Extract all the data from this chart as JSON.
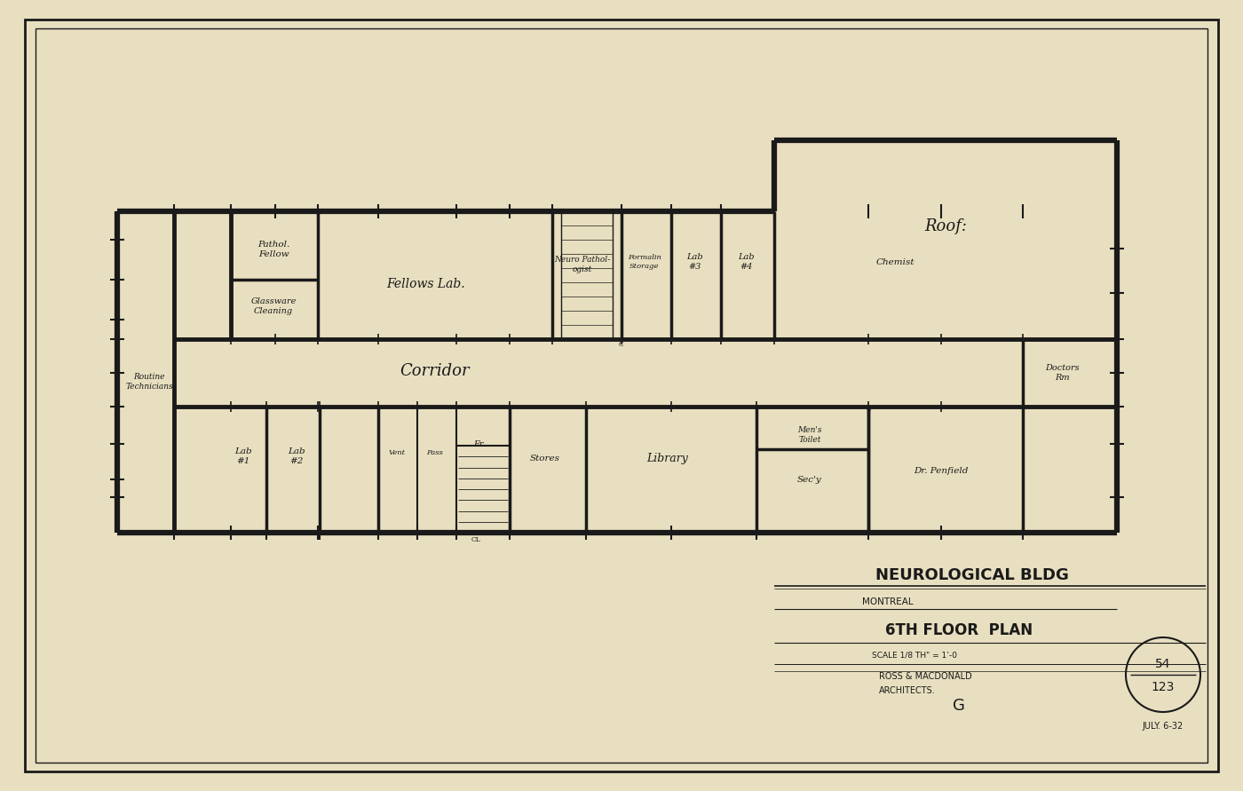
{
  "bg_color": "#e8dfc0",
  "line_color": "#1a1a1a",
  "title1": "NEUROLOGICAL BLDG",
  "title2": "MONTREAL",
  "title3": "6TH FLOOR  PLAN",
  "title4": "SCALE 1/8 TH\" = 1’-0",
  "title5": "ROSS & MACDONALD",
  "title6": "ARCHITECTS.",
  "ref1": "54",
  "ref2": "123",
  "date": "JULY. 6-32",
  "sheet": "G",
  "roof_label": "Roof:"
}
